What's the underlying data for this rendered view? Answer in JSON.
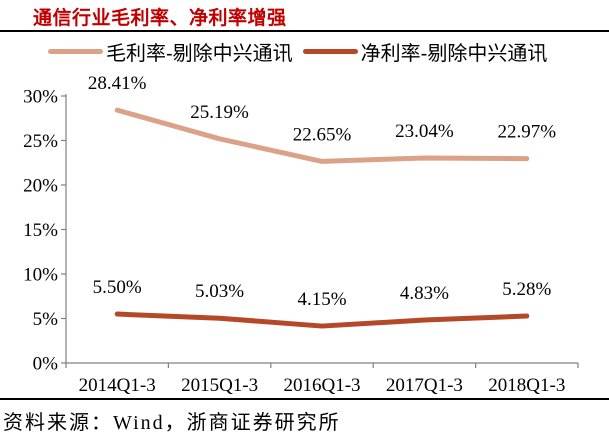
{
  "header": {
    "title": "通信行业毛利率、净利率增强",
    "title_color": "#C00000"
  },
  "legend": {
    "items": [
      {
        "label": "毛利率-剔除中兴通讯"
      },
      {
        "label": "净利率-剔除中兴通讯"
      }
    ]
  },
  "chart_data": {
    "type": "line",
    "title": "通信行业毛利率、净利率增强",
    "categories": [
      "2014Q1-3",
      "2015Q1-3",
      "2016Q1-3",
      "2017Q1-3",
      "2018Q1-3"
    ],
    "series": [
      {
        "name": "毛利率-剔除中兴通讯",
        "color": "#DBA287",
        "values": [
          28.41,
          25.19,
          22.65,
          23.04,
          22.97
        ],
        "labels": [
          "28.41%",
          "25.19%",
          "22.65%",
          "23.04%",
          "22.97%"
        ]
      },
      {
        "name": "净利率-剔除中兴通讯",
        "color": "#B54827",
        "values": [
          5.5,
          5.03,
          4.15,
          4.83,
          5.28
        ],
        "labels": [
          "5.50%",
          "5.03%",
          "4.15%",
          "4.83%",
          "5.28%"
        ]
      }
    ],
    "y_axis": {
      "min": 0,
      "max": 30,
      "step": 5,
      "tick_labels": [
        "0%",
        "5%",
        "10%",
        "15%",
        "20%",
        "25%",
        "30%"
      ]
    },
    "axis_color": "#808080",
    "grid": false,
    "legend_position": "top"
  },
  "footer": {
    "source": "资料来源：Wind，浙商证券研究所"
  }
}
